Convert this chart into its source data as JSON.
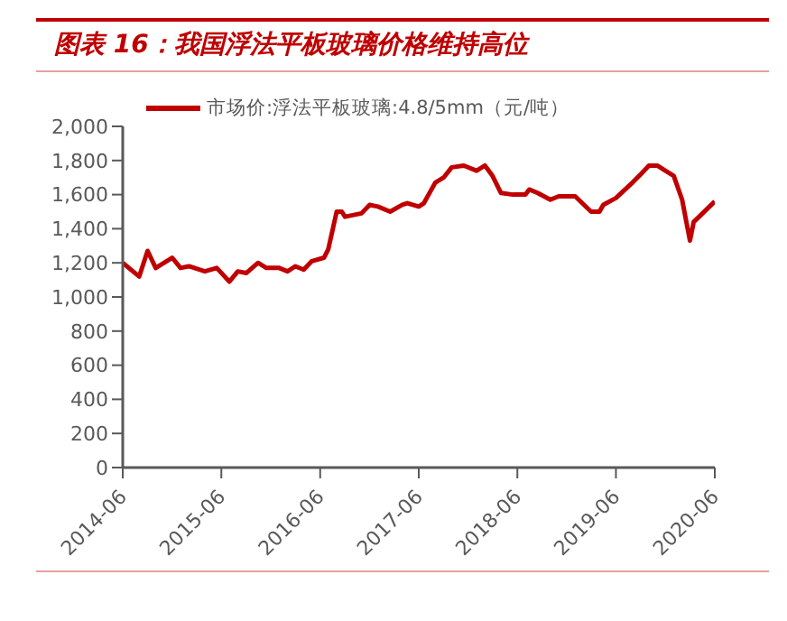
{
  "chart_data": {
    "type": "line",
    "title": "图表 16：我国浮法平板玻璃价格维持高位",
    "x": [
      "2014-06-01",
      "2014-08-01",
      "2014-09-01",
      "2014-10-01",
      "2014-12-01",
      "2015-01-01",
      "2015-02-01",
      "2015-04-01",
      "2015-05-15",
      "2015-07-01",
      "2015-08-01",
      "2015-09-01",
      "2015-10-15",
      "2015-11-15",
      "2016-01-01",
      "2016-02-01",
      "2016-03-01",
      "2016-04-01",
      "2016-05-01",
      "2016-06-15",
      "2016-07-01",
      "2016-08-01",
      "2016-08-20",
      "2016-09-01",
      "2016-11-01",
      "2016-12-01",
      "2017-01-01",
      "2017-02-15",
      "2017-04-01",
      "2017-04-20",
      "2017-06-01",
      "2017-06-20",
      "2017-08-01",
      "2017-09-01",
      "2017-10-01",
      "2017-11-15",
      "2018-01-01",
      "2018-02-01",
      "2018-03-01",
      "2018-04-01",
      "2018-05-15",
      "2018-07-01",
      "2018-07-15",
      "2018-08-15",
      "2018-10-01",
      "2018-11-01",
      "2019-01-01",
      "2019-03-01",
      "2019-04-01",
      "2019-04-15",
      "2019-06-01",
      "2019-08-01",
      "2019-09-01",
      "2019-10-01",
      "2019-11-01",
      "2019-12-01",
      "2020-01-01",
      "2020-02-01",
      "2020-03-01",
      "2020-03-15",
      "2020-06-01"
    ],
    "series": [
      {
        "name": "市场价:浮法平板玻璃:4.8/5mm（元/吨）",
        "color": "#c00000",
        "values": [
          1200,
          1120,
          1270,
          1170,
          1230,
          1170,
          1180,
          1150,
          1170,
          1090,
          1150,
          1140,
          1200,
          1170,
          1170,
          1150,
          1180,
          1160,
          1210,
          1230,
          1280,
          1500,
          1500,
          1470,
          1490,
          1540,
          1530,
          1500,
          1540,
          1550,
          1530,
          1550,
          1670,
          1700,
          1760,
          1770,
          1740,
          1770,
          1710,
          1610,
          1600,
          1600,
          1630,
          1610,
          1570,
          1590,
          1590,
          1500,
          1500,
          1540,
          1580,
          1670,
          1720,
          1770,
          1770,
          1740,
          1710,
          1570,
          1330,
          1440,
          1560
        ]
      }
    ],
    "xlim": [
      "2014-06-01",
      "2020-06-01"
    ],
    "xticks": [
      {
        "value": "2014-06-01",
        "label": "2014-06"
      },
      {
        "value": "2015-06-01",
        "label": "2015-06"
      },
      {
        "value": "2016-06-01",
        "label": "2016-06"
      },
      {
        "value": "2017-06-01",
        "label": "2017-06"
      },
      {
        "value": "2018-06-01",
        "label": "2018-06"
      },
      {
        "value": "2019-06-01",
        "label": "2019-06"
      },
      {
        "value": "2020-06-01",
        "label": "2020-06"
      }
    ],
    "ylim": [
      0,
      2000
    ],
    "yticks": [
      {
        "value": 0,
        "label": "0"
      },
      {
        "value": 200,
        "label": "200"
      },
      {
        "value": 400,
        "label": "400"
      },
      {
        "value": 600,
        "label": "600"
      },
      {
        "value": 800,
        "label": "800"
      },
      {
        "value": 1000,
        "label": "1,000"
      },
      {
        "value": 1200,
        "label": "1,200"
      },
      {
        "value": 1400,
        "label": "1,400"
      },
      {
        "value": 1600,
        "label": "1,600"
      },
      {
        "value": 1800,
        "label": "1,800"
      },
      {
        "value": 2000,
        "label": "2,000"
      }
    ],
    "legend": "top",
    "marker": "none",
    "line_style": "solid"
  }
}
